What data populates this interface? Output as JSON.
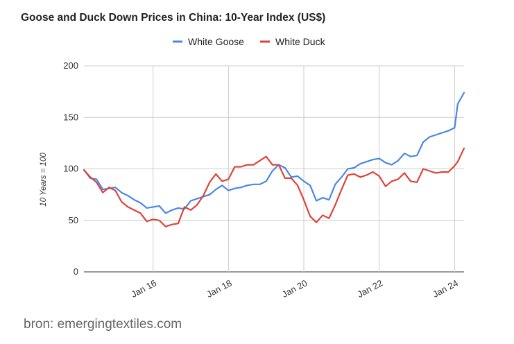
{
  "source_text": "bron: emergingtextiles.com",
  "chart_data": {
    "type": "line",
    "title": "Goose and Duck Down Prices in China: 10-Year Index (US$)",
    "xlabel": "",
    "ylabel": "10 Years = 100",
    "ylim": [
      0,
      200
    ],
    "y_ticks": [
      0,
      50,
      100,
      150,
      200
    ],
    "x_ticks": [
      "Jan 16",
      "Jan 18",
      "Jan 20",
      "Jan 22",
      "Jan 24"
    ],
    "x_tick_values": [
      "2016-01",
      "2018-01",
      "2020-01",
      "2022-01",
      "2024-01"
    ],
    "x_range": [
      "2014-03",
      "2024-04"
    ],
    "grid": true,
    "legend": "top",
    "series": [
      {
        "name": "White Goose",
        "color": "#4a86e8",
        "x": [
          "2014-03",
          "2014-05",
          "2014-07",
          "2014-09",
          "2014-11",
          "2015-01",
          "2015-03",
          "2015-05",
          "2015-07",
          "2015-09",
          "2015-11",
          "2016-01",
          "2016-03",
          "2016-05",
          "2016-07",
          "2016-09",
          "2016-11",
          "2017-01",
          "2017-03",
          "2017-05",
          "2017-07",
          "2017-09",
          "2017-11",
          "2018-01",
          "2018-03",
          "2018-05",
          "2018-07",
          "2018-09",
          "2018-11",
          "2019-01",
          "2019-03",
          "2019-05",
          "2019-07",
          "2019-09",
          "2019-11",
          "2020-01",
          "2020-03",
          "2020-05",
          "2020-07",
          "2020-09",
          "2020-11",
          "2021-01",
          "2021-03",
          "2021-05",
          "2021-07",
          "2021-09",
          "2021-11",
          "2022-01",
          "2022-03",
          "2022-05",
          "2022-07",
          "2022-09",
          "2022-11",
          "2023-01",
          "2023-03",
          "2023-05",
          "2023-07",
          "2023-09",
          "2023-11",
          "2024-01",
          "2024-02",
          "2024-04"
        ],
        "values": [
          99,
          91,
          90,
          80,
          81,
          82,
          77,
          74,
          70,
          67,
          62,
          63,
          64,
          57,
          60,
          62,
          61,
          69,
          71,
          73,
          75,
          80,
          84,
          79,
          81,
          82,
          84,
          85,
          85,
          88,
          98,
          104,
          101,
          92,
          93,
          88,
          84,
          69,
          72,
          70,
          85,
          92,
          100,
          101,
          105,
          107,
          109,
          110,
          106,
          104,
          108,
          115,
          112,
          113,
          126,
          131,
          133,
          135,
          137,
          140,
          163,
          174
        ]
      },
      {
        "name": "White Duck",
        "color": "#db4437",
        "x": [
          "2014-03",
          "2014-05",
          "2014-07",
          "2014-09",
          "2014-11",
          "2015-01",
          "2015-03",
          "2015-05",
          "2015-07",
          "2015-09",
          "2015-11",
          "2016-01",
          "2016-03",
          "2016-05",
          "2016-07",
          "2016-09",
          "2016-11",
          "2017-01",
          "2017-03",
          "2017-05",
          "2017-07",
          "2017-09",
          "2017-11",
          "2018-01",
          "2018-03",
          "2018-05",
          "2018-07",
          "2018-09",
          "2018-11",
          "2019-01",
          "2019-03",
          "2019-05",
          "2019-07",
          "2019-09",
          "2019-11",
          "2020-01",
          "2020-03",
          "2020-05",
          "2020-07",
          "2020-09",
          "2020-11",
          "2021-01",
          "2021-03",
          "2021-05",
          "2021-07",
          "2021-09",
          "2021-11",
          "2022-01",
          "2022-03",
          "2022-05",
          "2022-07",
          "2022-09",
          "2022-11",
          "2023-01",
          "2023-03",
          "2023-05",
          "2023-07",
          "2023-09",
          "2023-11",
          "2024-01",
          "2024-02",
          "2024-04"
        ],
        "values": [
          99,
          92,
          87,
          77,
          82,
          79,
          68,
          63,
          60,
          57,
          49,
          51,
          50,
          44,
          46,
          47,
          63,
          60,
          65,
          74,
          87,
          95,
          88,
          90,
          102,
          102,
          104,
          104,
          108,
          112,
          104,
          104,
          91,
          91,
          84,
          70,
          54,
          48,
          55,
          52,
          65,
          80,
          94,
          95,
          92,
          94,
          97,
          93,
          83,
          88,
          90,
          96,
          88,
          87,
          100,
          98,
          96,
          97,
          97,
          103,
          107,
          120
        ]
      }
    ]
  }
}
